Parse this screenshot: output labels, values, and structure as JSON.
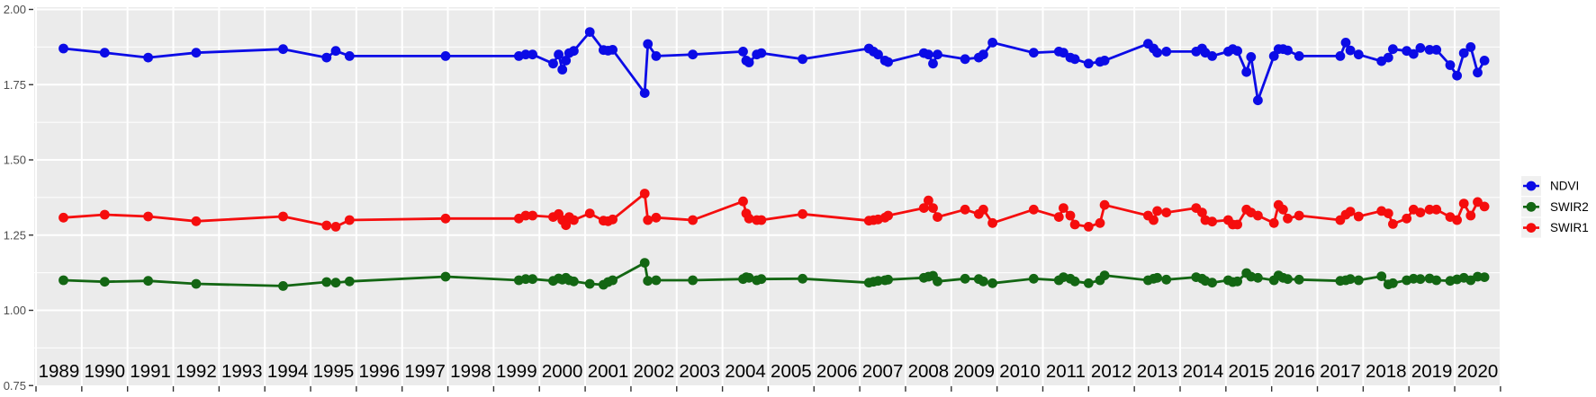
{
  "chart": {
    "panel_bg": "#EBEBEB",
    "grid_color": "#FFFFFF",
    "tick_color": "#333333",
    "y_label_color": "#4D4D4D",
    "x_label_color": "#000000",
    "legend_key_bg": "#F0F0F0",
    "legend_text_color": "#000000"
  },
  "y_axis": {
    "labels": [
      "2.00",
      "1.75",
      "1.50",
      "1.25",
      "1.00",
      "0.75"
    ],
    "values": [
      2.0,
      1.75,
      1.5,
      1.25,
      1.0,
      0.75
    ]
  },
  "x_axis": {
    "years": [
      1989,
      1990,
      1991,
      1992,
      1993,
      1994,
      1995,
      1996,
      1997,
      1998,
      1999,
      2000,
      2001,
      2002,
      2003,
      2004,
      2005,
      2006,
      2007,
      2008,
      2009,
      2010,
      2011,
      2012,
      2013,
      2014,
      2015,
      2016,
      2017,
      2018,
      2019,
      2020
    ]
  },
  "legend": {
    "position": "right",
    "items": [
      {
        "label": "NDVI",
        "color": "#0B0BE6"
      },
      {
        "label": "SWIR2",
        "color": "#136613"
      },
      {
        "label": "SWIR1",
        "color": "#F50D0D"
      }
    ]
  },
  "chart_data": {
    "type": "line",
    "title": "",
    "xlabel": "",
    "ylabel": "",
    "ylim": [
      0.75,
      2.0
    ],
    "xlim": [
      1988.95,
      2021.07
    ],
    "y_major_step": 0.25,
    "y_minor_step": 0.125,
    "grid": true,
    "legend_position": "right",
    "x": [
      1989.6,
      1990.5,
      1991.45,
      1992.5,
      1994.4,
      1995.35,
      1995.55,
      1995.85,
      1997.95,
      1999.55,
      1999.7,
      1999.85,
      2000.3,
      2000.42,
      2000.5,
      2000.58,
      2000.65,
      2000.75,
      2001.1,
      2001.4,
      2001.5,
      2001.6,
      2002.3,
      2002.37,
      2002.55,
      2003.35,
      2004.45,
      2004.52,
      2004.58,
      2004.75,
      2004.85,
      2005.75,
      2007.2,
      2007.3,
      2007.4,
      2007.55,
      2007.62,
      2008.4,
      2008.5,
      2008.6,
      2008.7,
      2009.3,
      2009.6,
      2009.7,
      2009.9,
      2010.8,
      2011.35,
      2011.45,
      2011.6,
      2011.7,
      2012.0,
      2012.25,
      2012.35,
      2013.3,
      2013.42,
      2013.5,
      2013.7,
      2014.35,
      2014.48,
      2014.55,
      2014.7,
      2015.05,
      2015.15,
      2015.25,
      2015.45,
      2015.55,
      2015.7,
      2016.05,
      2016.15,
      2016.25,
      2016.35,
      2016.6,
      2017.5,
      2017.62,
      2017.72,
      2017.9,
      2018.4,
      2018.55,
      2018.65,
      2018.95,
      2019.1,
      2019.25,
      2019.45,
      2019.6,
      2019.9,
      2020.05,
      2020.2,
      2020.35,
      2020.5,
      2020.65
    ],
    "series": [
      {
        "name": "NDVI",
        "color": "#0B0BE6",
        "values": [
          1.87,
          1.856,
          1.84,
          1.856,
          1.868,
          1.84,
          1.862,
          1.845,
          1.845,
          1.845,
          1.85,
          1.85,
          1.82,
          1.85,
          1.8,
          1.83,
          1.855,
          1.862,
          1.925,
          1.865,
          1.863,
          1.866,
          1.722,
          1.885,
          1.845,
          1.85,
          1.86,
          1.83,
          1.824,
          1.85,
          1.855,
          1.835,
          1.87,
          1.86,
          1.85,
          1.83,
          1.825,
          1.855,
          1.85,
          1.82,
          1.85,
          1.835,
          1.84,
          1.85,
          1.89,
          1.856,
          1.86,
          1.856,
          1.84,
          1.835,
          1.82,
          1.826,
          1.83,
          1.886,
          1.87,
          1.856,
          1.86,
          1.86,
          1.87,
          1.856,
          1.845,
          1.86,
          1.868,
          1.862,
          1.792,
          1.842,
          1.698,
          1.845,
          1.868,
          1.868,
          1.864,
          1.845,
          1.845,
          1.89,
          1.864,
          1.85,
          1.828,
          1.84,
          1.868,
          1.862,
          1.852,
          1.872,
          1.866,
          1.866,
          1.815,
          1.78,
          1.855,
          1.875,
          1.79,
          1.83
        ]
      },
      {
        "name": "SWIR2",
        "color": "#136613",
        "values": [
          1.1,
          1.095,
          1.098,
          1.088,
          1.081,
          1.094,
          1.092,
          1.096,
          1.112,
          1.1,
          1.104,
          1.104,
          1.098,
          1.106,
          1.102,
          1.108,
          1.1,
          1.096,
          1.088,
          1.085,
          1.094,
          1.1,
          1.158,
          1.098,
          1.1,
          1.1,
          1.104,
          1.11,
          1.108,
          1.1,
          1.104,
          1.105,
          1.092,
          1.095,
          1.098,
          1.1,
          1.102,
          1.108,
          1.112,
          1.115,
          1.096,
          1.105,
          1.104,
          1.096,
          1.09,
          1.105,
          1.1,
          1.11,
          1.105,
          1.096,
          1.09,
          1.1,
          1.116,
          1.1,
          1.105,
          1.108,
          1.102,
          1.11,
          1.105,
          1.098,
          1.092,
          1.1,
          1.094,
          1.096,
          1.124,
          1.112,
          1.108,
          1.1,
          1.116,
          1.108,
          1.104,
          1.102,
          1.098,
          1.1,
          1.104,
          1.1,
          1.113,
          1.086,
          1.09,
          1.1,
          1.105,
          1.104,
          1.106,
          1.1,
          1.098,
          1.103,
          1.108,
          1.1,
          1.112,
          1.11
        ]
      },
      {
        "name": "SWIR1",
        "color": "#F50D0D",
        "values": [
          1.308,
          1.318,
          1.312,
          1.296,
          1.312,
          1.282,
          1.278,
          1.3,
          1.305,
          1.305,
          1.315,
          1.315,
          1.31,
          1.32,
          1.3,
          1.283,
          1.31,
          1.3,
          1.322,
          1.298,
          1.296,
          1.302,
          1.388,
          1.3,
          1.308,
          1.3,
          1.362,
          1.322,
          1.305,
          1.3,
          1.3,
          1.32,
          1.298,
          1.3,
          1.302,
          1.308,
          1.315,
          1.34,
          1.365,
          1.34,
          1.31,
          1.335,
          1.32,
          1.335,
          1.29,
          1.335,
          1.31,
          1.34,
          1.315,
          1.285,
          1.278,
          1.29,
          1.35,
          1.315,
          1.3,
          1.33,
          1.325,
          1.34,
          1.325,
          1.3,
          1.295,
          1.3,
          1.285,
          1.285,
          1.335,
          1.325,
          1.315,
          1.29,
          1.35,
          1.335,
          1.305,
          1.315,
          1.3,
          1.318,
          1.328,
          1.312,
          1.33,
          1.322,
          1.287,
          1.305,
          1.335,
          1.325,
          1.335,
          1.335,
          1.31,
          1.3,
          1.355,
          1.315,
          1.36,
          1.345
        ]
      }
    ]
  }
}
